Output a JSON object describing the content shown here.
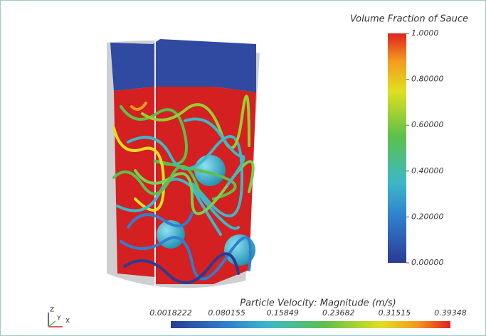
{
  "volume_colorbar": {
    "title": "Volume Fraction of Sauce",
    "ticks": [
      "1.0000",
      "0.80000",
      "0.60000",
      "0.40000",
      "0.20000",
      "0.00000"
    ]
  },
  "velocity_colorbar": {
    "title": "Particle Velocity: Magnitude (m/s)",
    "ticks": [
      "0.0018222",
      "0.080155",
      "0.15849",
      "0.23682",
      "0.31515",
      "0.39348"
    ]
  },
  "axes_triad": {
    "z": "Z",
    "y": "Y",
    "x": "X"
  }
}
